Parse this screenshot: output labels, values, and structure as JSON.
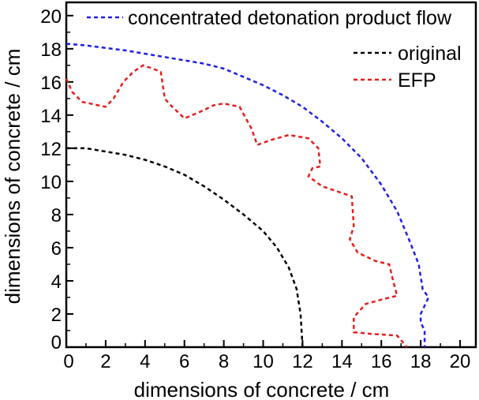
{
  "chart_data": {
    "type": "line",
    "title": "",
    "xlabel": "dimensions of concrete / cm",
    "ylabel": "dimensions of concrete / cm",
    "xlim": [
      0,
      20.8
    ],
    "ylim": [
      0,
      20.8
    ],
    "xticks": [
      "0",
      "2",
      "4",
      "6",
      "8",
      "10",
      "12",
      "14",
      "16",
      "18",
      "20"
    ],
    "yticks": [
      "0",
      "2",
      "4",
      "6",
      "8",
      "10",
      "12",
      "14",
      "16",
      "18",
      "20"
    ],
    "grid": false,
    "legend_placement": "top-right",
    "series": [
      {
        "name": "concentrated detonation product flow",
        "color": "#1f1fe6",
        "style": "dashed",
        "points": [
          [
            0,
            18.3
          ],
          [
            1,
            18.2
          ],
          [
            2,
            18.05
          ],
          [
            3,
            17.9
          ],
          [
            4,
            17.7
          ],
          [
            5,
            17.5
          ],
          [
            6,
            17.3
          ],
          [
            7,
            17.1
          ],
          [
            8,
            16.8
          ],
          [
            9,
            16.3
          ],
          [
            10,
            15.8
          ],
          [
            11,
            15.2
          ],
          [
            12,
            14.5
          ],
          [
            13,
            13.6
          ],
          [
            14,
            12.6
          ],
          [
            15,
            11.4
          ],
          [
            16,
            9.8
          ],
          [
            16.8,
            8.2
          ],
          [
            17.4,
            6.5
          ],
          [
            17.9,
            5.0
          ],
          [
            18.1,
            3.5
          ],
          [
            18.4,
            3.0
          ],
          [
            18.0,
            2.0
          ],
          [
            18.0,
            1.5
          ],
          [
            18.2,
            1.0
          ],
          [
            18.2,
            0
          ]
        ]
      },
      {
        "name": "original",
        "color": "#000000",
        "style": "dashed",
        "points": [
          [
            0,
            12.0
          ],
          [
            1,
            12.0
          ],
          [
            2,
            11.8
          ],
          [
            3,
            11.6
          ],
          [
            4,
            11.3
          ],
          [
            5,
            10.9
          ],
          [
            6,
            10.4
          ],
          [
            7,
            9.7
          ],
          [
            8,
            8.9
          ],
          [
            9,
            8.0
          ],
          [
            10,
            7.0
          ],
          [
            10.7,
            6.0
          ],
          [
            11.3,
            4.8
          ],
          [
            11.7,
            3.5
          ],
          [
            11.9,
            2.0
          ],
          [
            12.0,
            0
          ]
        ]
      },
      {
        "name": "EFP",
        "color": "#e61e1e",
        "style": "dashed",
        "points": [
          [
            0,
            16.2
          ],
          [
            0.3,
            15.4
          ],
          [
            0.8,
            14.8
          ],
          [
            2.0,
            14.5
          ],
          [
            2.4,
            15.0
          ],
          [
            2.9,
            16.0
          ],
          [
            3.4,
            16.6
          ],
          [
            3.9,
            17.0
          ],
          [
            4.4,
            16.8
          ],
          [
            4.8,
            16.6
          ],
          [
            5.0,
            15.0
          ],
          [
            5.3,
            14.6
          ],
          [
            6.0,
            13.8
          ],
          [
            6.8,
            14.2
          ],
          [
            7.5,
            14.6
          ],
          [
            8.0,
            14.7
          ],
          [
            8.8,
            14.5
          ],
          [
            9.4,
            13.2
          ],
          [
            9.7,
            12.2
          ],
          [
            10.4,
            12.5
          ],
          [
            11.3,
            12.8
          ],
          [
            12.3,
            12.6
          ],
          [
            12.8,
            12.0
          ],
          [
            12.9,
            10.9
          ],
          [
            12.5,
            10.8
          ],
          [
            12.3,
            10.3
          ],
          [
            13.0,
            9.7
          ],
          [
            14.0,
            9.3
          ],
          [
            14.5,
            9.1
          ],
          [
            14.6,
            7.3
          ],
          [
            14.4,
            6.5
          ],
          [
            14.8,
            5.7
          ],
          [
            15.7,
            5.2
          ],
          [
            16.4,
            5.0
          ],
          [
            16.6,
            4.0
          ],
          [
            16.8,
            3.1
          ],
          [
            16.1,
            2.9
          ],
          [
            15.2,
            2.6
          ],
          [
            14.6,
            1.8
          ],
          [
            14.6,
            0.9
          ],
          [
            15.5,
            0.8
          ],
          [
            16.8,
            0.7
          ],
          [
            17.3,
            0
          ]
        ]
      }
    ]
  }
}
